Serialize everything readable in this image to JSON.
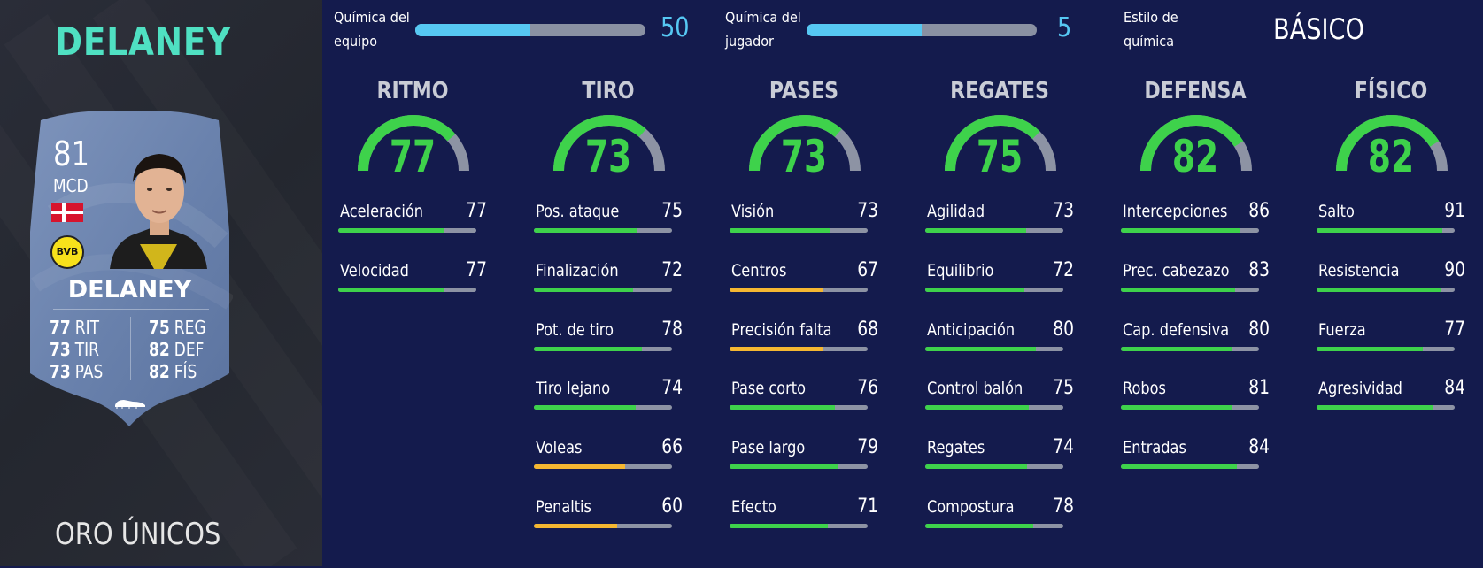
{
  "player": {
    "title": "DELANEY",
    "card_version": "ORO ÚNICOS",
    "card": {
      "rating": "81",
      "position": "MCD",
      "name": "DELANEY",
      "club": "BVB",
      "stats_left": [
        {
          "value": "77",
          "label": "RIT"
        },
        {
          "value": "73",
          "label": "TIR"
        },
        {
          "value": "73",
          "label": "PAS"
        }
      ],
      "stats_right": [
        {
          "value": "75",
          "label": "REG"
        },
        {
          "value": "82",
          "label": "DEF"
        },
        {
          "value": "82",
          "label": "FÍS"
        }
      ]
    }
  },
  "chemistry": {
    "team": {
      "label_line1": "Química del",
      "label_line2": "equipo",
      "value": "50",
      "fill_fraction": 0.5
    },
    "player": {
      "label_line1": "Química del",
      "label_line2": "jugador",
      "value": "5",
      "fill_fraction": 0.5
    },
    "style": {
      "label_line1": "Estilo de",
      "label_line2": "química",
      "value": "BÁSICO"
    }
  },
  "colors": {
    "accent_teal": "#4fe0c2",
    "chem_blue": "#56c8f3",
    "stat_green": "#3ed24b",
    "stat_yellow": "#f5b731",
    "track_gray": "#8d93a4",
    "background": "#141b4d"
  },
  "categories": [
    {
      "title": "RITMO",
      "value": 77,
      "attributes": [
        {
          "name": "Aceleración",
          "value": 77
        },
        {
          "name": "Velocidad",
          "value": 77
        }
      ]
    },
    {
      "title": "TIRO",
      "value": 73,
      "attributes": [
        {
          "name": "Pos. ataque",
          "value": 75
        },
        {
          "name": "Finalización",
          "value": 72
        },
        {
          "name": "Pot. de tiro",
          "value": 78
        },
        {
          "name": "Tiro lejano",
          "value": 74
        },
        {
          "name": "Voleas",
          "value": 66
        },
        {
          "name": "Penaltis",
          "value": 60
        }
      ]
    },
    {
      "title": "PASES",
      "value": 73,
      "attributes": [
        {
          "name": "Visión",
          "value": 73
        },
        {
          "name": "Centros",
          "value": 67
        },
        {
          "name": "Precisión falta",
          "value": 68
        },
        {
          "name": "Pase corto",
          "value": 76
        },
        {
          "name": "Pase largo",
          "value": 79
        },
        {
          "name": "Efecto",
          "value": 71
        }
      ]
    },
    {
      "title": "REGATES",
      "value": 75,
      "attributes": [
        {
          "name": "Agilidad",
          "value": 73
        },
        {
          "name": "Equilibrio",
          "value": 72
        },
        {
          "name": "Anticipación",
          "value": 80
        },
        {
          "name": "Control balón",
          "value": 75
        },
        {
          "name": "Regates",
          "value": 74
        },
        {
          "name": "Compostura",
          "value": 78
        }
      ]
    },
    {
      "title": "DEFENSA",
      "value": 82,
      "attributes": [
        {
          "name": "Intercepciones",
          "value": 86
        },
        {
          "name": "Prec. cabezazo",
          "value": 83
        },
        {
          "name": "Cap. defensiva",
          "value": 80
        },
        {
          "name": "Robos",
          "value": 81
        },
        {
          "name": "Entradas",
          "value": 84
        }
      ]
    },
    {
      "title": "FÍSICO",
      "value": 82,
      "attributes": [
        {
          "name": "Salto",
          "value": 91
        },
        {
          "name": "Resistencia",
          "value": 90
        },
        {
          "name": "Fuerza",
          "value": 77
        },
        {
          "name": "Agresividad",
          "value": 84
        }
      ]
    }
  ]
}
